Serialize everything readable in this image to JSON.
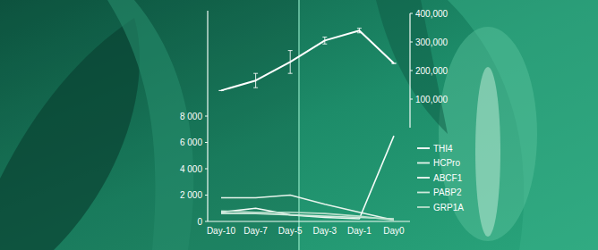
{
  "chart_data": {
    "type": "line",
    "categories": [
      "Day-10",
      "Day-7",
      "Day-5",
      "Day-3",
      "Day-1",
      "Day0"
    ],
    "ylim": [
      0,
      16000
    ],
    "yticks": [
      0,
      {
        "value": 2000,
        "label": "2 000"
      },
      {
        "value": 4000,
        "label": "4 000"
      },
      {
        "value": 6000,
        "label": "6 000"
      },
      {
        "value": 8000,
        "label": "8 000"
      }
    ],
    "y2lim": [
      0,
      400000
    ],
    "y2ticks": [
      {
        "value": 100000,
        "label": "100,000"
      },
      {
        "value": 200000,
        "label": "200,000"
      },
      {
        "value": 300000,
        "label": "300,000"
      },
      {
        "value": 400000,
        "label": "400,000"
      }
    ],
    "grid": false,
    "legend": "right",
    "series": [
      {
        "name": "THI4",
        "color": "#ffffff",
        "axis": "y2",
        "values": [
          130000,
          165000,
          230000,
          305000,
          340000,
          225000
        ],
        "errors": [
          0,
          25000,
          40000,
          12000,
          8000,
          0
        ]
      },
      {
        "name": "HCPro",
        "color": "#e6f4ec",
        "values": [
          1800,
          1800,
          2000,
          1300,
          700,
          100
        ]
      },
      {
        "name": "ABCF1",
        "color": "#f4fbf7",
        "values": [
          700,
          1000,
          500,
          300,
          200,
          6500
        ]
      },
      {
        "name": "PABP2",
        "color": "#cfeadc",
        "values": [
          600,
          600,
          500,
          400,
          300,
          200
        ]
      },
      {
        "name": "GRP1A",
        "color": "#b9dfcc",
        "values": [
          800,
          700,
          700,
          600,
          400,
          100
        ]
      }
    ]
  }
}
